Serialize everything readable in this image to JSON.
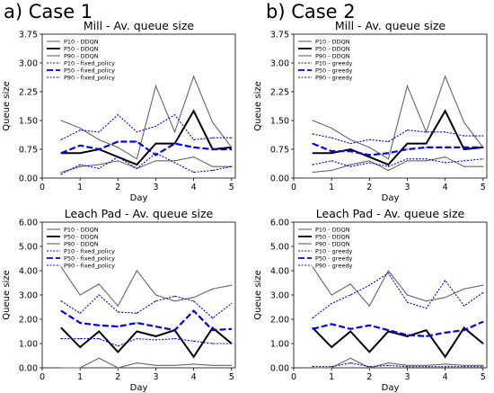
{
  "figure": {
    "case_labels": [
      "a) Case 1",
      "b) Case 2"
    ]
  },
  "chart_data": [
    {
      "type": "line",
      "title": "Mill - Av. queue size",
      "xlabel": "Day",
      "ylabel": "Queue size",
      "xlim": [
        0,
        5.1
      ],
      "ylim": [
        0,
        3.75
      ],
      "xticks": [
        0,
        1,
        2,
        3,
        4,
        5
      ],
      "yticks": [
        "0.00",
        "0.75",
        "1.50",
        "2.25",
        "3.00",
        "3.75"
      ],
      "x": [
        0.5,
        1.0,
        1.5,
        2.0,
        2.5,
        3.0,
        3.5,
        4.0,
        4.5,
        5.0
      ],
      "legend_position": "top-left",
      "series": [
        {
          "name": "P10 - DDQN",
          "color": "#666666",
          "style": "solid",
          "width": 1.1,
          "values": [
            0.15,
            0.3,
            0.35,
            0.45,
            0.25,
            0.45,
            0.45,
            0.55,
            0.3,
            0.3
          ]
        },
        {
          "name": "P50 - DDQN",
          "color": "#000000",
          "style": "solid",
          "width": 2.0,
          "values": [
            0.65,
            0.65,
            0.75,
            0.55,
            0.35,
            0.9,
            0.9,
            1.75,
            0.75,
            0.8
          ]
        },
        {
          "name": "P90 - DDQN",
          "color": "#666666",
          "style": "solid",
          "width": 1.1,
          "values": [
            1.5,
            1.3,
            1.0,
            0.8,
            0.5,
            2.4,
            1.2,
            2.65,
            1.45,
            0.8
          ]
        },
        {
          "name": "P10 - fixed_policy",
          "color": "#0000dd",
          "style": "dotted",
          "width": 1.1,
          "values": [
            0.1,
            0.35,
            0.25,
            0.55,
            0.25,
            0.65,
            0.4,
            0.15,
            0.2,
            0.3
          ]
        },
        {
          "name": "P50 - fixed_policy",
          "color": "#0000dd",
          "style": "dashed",
          "width": 2.2,
          "values": [
            0.65,
            0.85,
            0.75,
            0.95,
            0.95,
            0.6,
            0.9,
            0.8,
            0.75,
            0.75
          ]
        },
        {
          "name": "P90 - fixed_policy",
          "color": "#0000dd",
          "style": "dotted",
          "width": 1.1,
          "values": [
            1.0,
            1.25,
            1.2,
            1.65,
            1.2,
            1.35,
            1.65,
            1.0,
            1.05,
            1.05
          ]
        }
      ]
    },
    {
      "type": "line",
      "title": "Mill - Av. queue size",
      "xlabel": "Day",
      "ylabel": "Queue size",
      "xlim": [
        0,
        5.1
      ],
      "ylim": [
        0,
        3.75
      ],
      "xticks": [
        0,
        1,
        2,
        3,
        4,
        5
      ],
      "yticks": [
        "0.00",
        "0.75",
        "1.50",
        "2.25",
        "3.00",
        "3.75"
      ],
      "x": [
        0.5,
        1.0,
        1.5,
        2.0,
        2.5,
        3.0,
        3.5,
        4.0,
        4.5,
        5.0
      ],
      "legend_position": "top-left",
      "series": [
        {
          "name": "P10 - DDQN",
          "color": "#666666",
          "style": "solid",
          "width": 1.1,
          "values": [
            0.15,
            0.2,
            0.35,
            0.45,
            0.2,
            0.45,
            0.45,
            0.55,
            0.3,
            0.3
          ]
        },
        {
          "name": "P50 - DDQN",
          "color": "#000000",
          "style": "solid",
          "width": 2.0,
          "values": [
            0.65,
            0.65,
            0.75,
            0.55,
            0.35,
            0.9,
            0.9,
            1.75,
            0.75,
            0.8
          ]
        },
        {
          "name": "P90 - DDQN",
          "color": "#666666",
          "style": "solid",
          "width": 1.1,
          "values": [
            1.5,
            1.3,
            1.0,
            0.8,
            0.5,
            2.4,
            1.2,
            2.65,
            1.45,
            0.8
          ]
        },
        {
          "name": "P10 - greedy",
          "color": "#0000dd",
          "style": "dotted",
          "width": 1.1,
          "values": [
            0.35,
            0.45,
            0.3,
            0.4,
            0.3,
            0.5,
            0.5,
            0.4,
            0.45,
            0.5
          ]
        },
        {
          "name": "P50 - greedy",
          "color": "#0000dd",
          "style": "dashed",
          "width": 2.2,
          "values": [
            0.9,
            0.7,
            0.7,
            0.6,
            0.65,
            0.75,
            0.8,
            0.8,
            0.8,
            0.8
          ]
        },
        {
          "name": "P90 - greedy",
          "color": "#0000dd",
          "style": "dotted",
          "width": 1.1,
          "values": [
            1.15,
            1.05,
            0.9,
            1.0,
            0.95,
            1.25,
            1.2,
            1.2,
            1.1,
            1.1
          ]
        }
      ]
    },
    {
      "type": "line",
      "title": "Leach Pad - Av. queue size",
      "xlabel": "Day",
      "ylabel": "Queue size",
      "xlim": [
        0,
        5.1
      ],
      "ylim": [
        0,
        6.0
      ],
      "xticks": [
        0,
        1,
        2,
        3,
        4,
        5
      ],
      "yticks": [
        "0.00",
        "1.00",
        "2.00",
        "3.00",
        "4.00",
        "5.00",
        "6.00"
      ],
      "x": [
        0.5,
        1.0,
        1.5,
        2.0,
        2.5,
        3.0,
        3.5,
        4.0,
        4.5,
        5.0
      ],
      "legend_position": "top-left",
      "series": [
        {
          "name": "P10 - DDQN",
          "color": "#666666",
          "style": "solid",
          "width": 1.1,
          "values": [
            0.0,
            0.0,
            0.4,
            0.0,
            0.2,
            0.1,
            0.1,
            0.15,
            0.1,
            0.1
          ]
        },
        {
          "name": "P50 - DDQN",
          "color": "#000000",
          "style": "solid",
          "width": 2.0,
          "values": [
            1.65,
            0.85,
            1.5,
            0.65,
            1.5,
            1.3,
            1.55,
            0.45,
            1.65,
            1.0
          ]
        },
        {
          "name": "P90 - DDQN",
          "color": "#666666",
          "style": "solid",
          "width": 1.1,
          "values": [
            4.15,
            3.0,
            3.45,
            2.55,
            4.0,
            3.0,
            2.75,
            2.9,
            3.25,
            3.4
          ]
        },
        {
          "name": "P10 - fixed_policy",
          "color": "#0000dd",
          "style": "dotted",
          "width": 1.1,
          "values": [
            1.2,
            1.2,
            1.2,
            0.9,
            1.2,
            1.15,
            1.2,
            1.1,
            1.0,
            1.0
          ]
        },
        {
          "name": "P50 - fixed_policy",
          "color": "#0000dd",
          "style": "dashed",
          "width": 2.2,
          "values": [
            2.35,
            1.85,
            1.75,
            1.7,
            1.85,
            1.7,
            1.55,
            2.35,
            1.55,
            1.6
          ]
        },
        {
          "name": "P90 - fixed_policy",
          "color": "#0000dd",
          "style": "dotted",
          "width": 1.1,
          "values": [
            2.75,
            2.25,
            3.0,
            2.3,
            2.25,
            2.75,
            2.95,
            2.75,
            2.05,
            2.65
          ]
        }
      ]
    },
    {
      "type": "line",
      "title": "Leach Pad - Av. queue size",
      "xlabel": "Day",
      "ylabel": "Queue size",
      "xlim": [
        0,
        5.1
      ],
      "ylim": [
        0,
        6.0
      ],
      "xticks": [
        0,
        1,
        2,
        3,
        4,
        5
      ],
      "yticks": [
        "0.00",
        "1.00",
        "2.00",
        "3.00",
        "4.00",
        "5.00",
        "6.00"
      ],
      "x": [
        0.5,
        1.0,
        1.5,
        2.0,
        2.5,
        3.0,
        3.5,
        4.0,
        4.5,
        5.0
      ],
      "legend_position": "top-left",
      "series": [
        {
          "name": "P10 - DDQN",
          "color": "#666666",
          "style": "solid",
          "width": 1.1,
          "values": [
            0.0,
            0.0,
            0.4,
            0.0,
            0.2,
            0.1,
            0.1,
            0.15,
            0.1,
            0.1
          ]
        },
        {
          "name": "P50 - DDQN",
          "color": "#000000",
          "style": "solid",
          "width": 2.0,
          "values": [
            1.65,
            0.85,
            1.5,
            0.65,
            1.5,
            1.3,
            1.55,
            0.45,
            1.65,
            1.0
          ]
        },
        {
          "name": "P90 - DDQN",
          "color": "#666666",
          "style": "solid",
          "width": 1.1,
          "values": [
            4.15,
            3.0,
            3.45,
            2.55,
            4.0,
            3.0,
            2.75,
            2.9,
            3.25,
            3.4
          ]
        },
        {
          "name": "P10 - greedy",
          "color": "#0000dd",
          "style": "dotted",
          "width": 1.1,
          "values": [
            0.05,
            0.05,
            0.2,
            0.05,
            0.1,
            0.05,
            0.05,
            0.05,
            0.05,
            0.05
          ]
        },
        {
          "name": "P50 - greedy",
          "color": "#0000dd",
          "style": "dashed",
          "width": 2.2,
          "values": [
            1.6,
            1.8,
            1.6,
            1.75,
            1.55,
            1.35,
            1.3,
            1.45,
            1.55,
            1.9
          ]
        },
        {
          "name": "P90 - greedy",
          "color": "#0000dd",
          "style": "dotted",
          "width": 1.1,
          "values": [
            2.05,
            2.65,
            3.0,
            3.4,
            3.9,
            2.7,
            2.45,
            3.6,
            2.55,
            3.1
          ]
        }
      ]
    }
  ]
}
